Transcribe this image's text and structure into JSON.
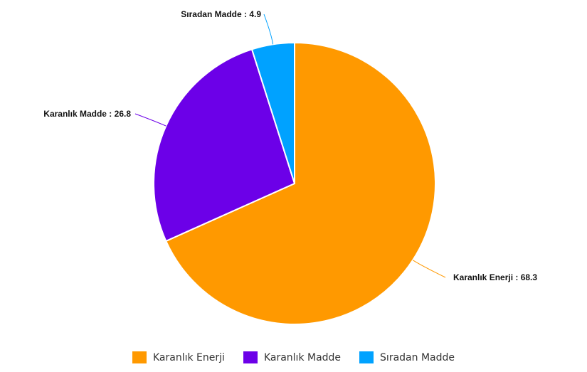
{
  "chart_data": {
    "type": "pie",
    "title": "",
    "slices": [
      {
        "label": "Karanlık Enerji",
        "value": 68.3,
        "color": "#FF9900",
        "data_label": "Karanlık Enerji : 68.3"
      },
      {
        "label": "Karanlık Madde",
        "value": 26.8,
        "color": "#6C00E8",
        "data_label": "Karanlık Madde : 26.8"
      },
      {
        "label": "Sıradan Madde",
        "value": 4.9,
        "color": "#00A2FF",
        "data_label": "Sıradan Madde : 4.9"
      }
    ],
    "legend_position": "bottom",
    "slice_border_color": "#ffffff"
  },
  "legend": {
    "items": [
      {
        "label": "Karanlık Enerji",
        "color": "#FF9900"
      },
      {
        "label": "Karanlık Madde",
        "color": "#6C00E8"
      },
      {
        "label": "Sıradan Madde",
        "color": "#00A2FF"
      }
    ]
  }
}
